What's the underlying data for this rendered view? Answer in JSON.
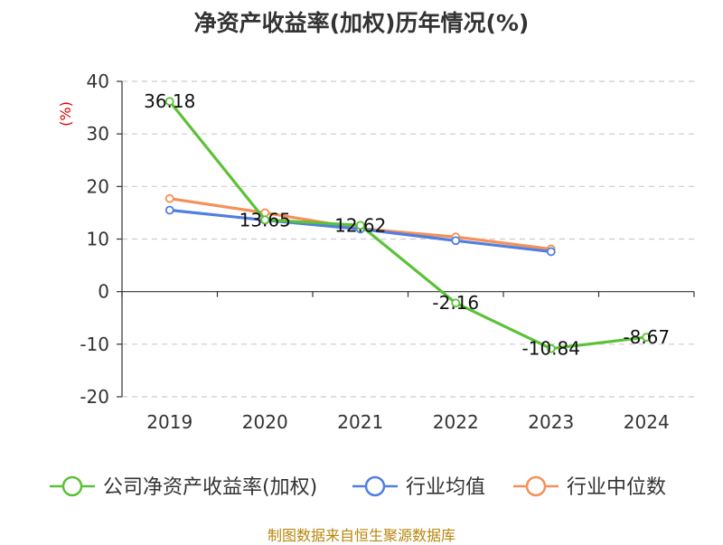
{
  "title": "净资产收益率(加权)历年情况(%)",
  "source": "制图数据来自恒生聚源数据库",
  "chart_data": {
    "type": "line",
    "ylabel": "(%)",
    "ylim": [
      -20,
      40
    ],
    "yticks": [
      -20,
      -10,
      0,
      10,
      20,
      30,
      40
    ],
    "grid": true,
    "legend_position": "bottom",
    "categories": [
      "2019",
      "2020",
      "2021",
      "2022",
      "2023",
      "2024"
    ],
    "series": [
      {
        "name": "公司净资产收益率(加权)",
        "color": "#5bc236",
        "values": [
          36.18,
          13.65,
          12.62,
          -2.16,
          -10.84,
          -8.67
        ],
        "labels": [
          "36.18",
          "13.65",
          "12.62",
          "-2.16",
          "-10.84",
          "-8.67"
        ]
      },
      {
        "name": "行业均值",
        "color": "#4f7fe0",
        "values": [
          15.5,
          13.6,
          11.9,
          9.7,
          7.6,
          null
        ]
      },
      {
        "name": "行业中位数",
        "color": "#f59058",
        "values": [
          17.7,
          15.0,
          12.0,
          10.4,
          8.1,
          null
        ]
      }
    ]
  }
}
